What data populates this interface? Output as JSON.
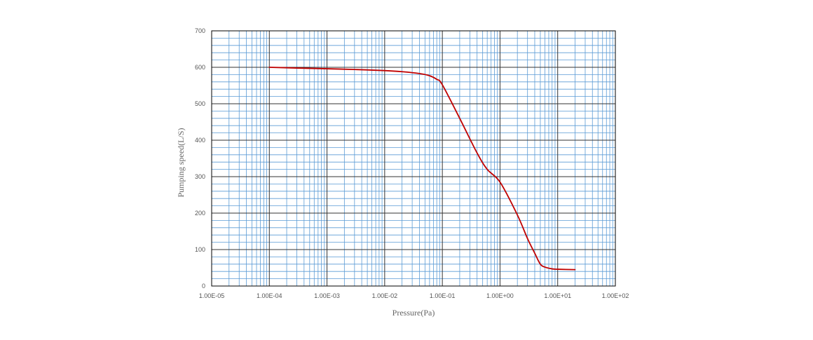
{
  "chart_data": {
    "type": "line",
    "title": "",
    "xlabel": "Pressure(Pa)",
    "ylabel": "Pumping speed(L/S)",
    "x_scale": "log",
    "xlim": [
      1e-05,
      100
    ],
    "ylim": [
      0,
      700
    ],
    "x_tick_labels": [
      "1.00E-05",
      "1.00E-04",
      "1.00E-03",
      "1.00E-02",
      "1.00E-01",
      "1.00E+00",
      "1.00E+01",
      "1.00E+02"
    ],
    "x_tick_values": [
      1e-05,
      0.0001,
      0.001,
      0.01,
      0.1,
      1,
      10,
      100
    ],
    "y_tick_labels": [
      "0",
      "100",
      "200",
      "300",
      "400",
      "500",
      "600",
      "700"
    ],
    "y_tick_values": [
      0,
      100,
      200,
      300,
      400,
      500,
      600,
      700
    ],
    "grid": {
      "major": true,
      "minor": true
    },
    "legend": "none",
    "colors": {
      "minor_grid": "#5b9bd5",
      "major_grid": "#333333",
      "series": "#c00000",
      "frame": "#000000"
    },
    "series": [
      {
        "x": [
          0.0001,
          0.0003,
          0.001,
          0.003,
          0.01,
          0.02,
          0.04,
          0.06,
          0.08,
          0.1,
          0.2,
          0.4,
          0.6,
          1,
          2,
          3,
          4,
          5,
          6,
          8,
          10,
          20
        ],
        "y": [
          600,
          598,
          596,
          594,
          591,
          588,
          583,
          577,
          567,
          552,
          460,
          365,
          320,
          285,
          195,
          130,
          90,
          60,
          52,
          47,
          46,
          45
        ]
      }
    ]
  }
}
